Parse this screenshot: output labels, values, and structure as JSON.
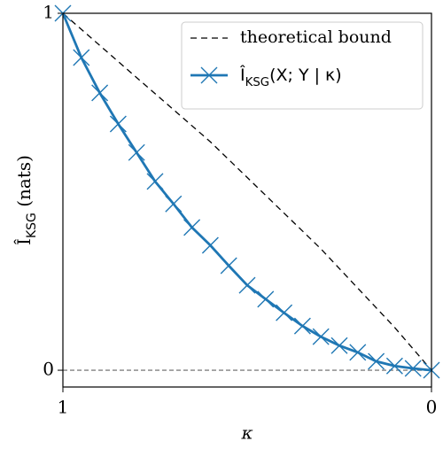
{
  "chart_data": {
    "type": "line",
    "x_label": "κ",
    "y_label": "Î_{KSG} (nats)",
    "xlim": [
      1,
      0
    ],
    "ylim": [
      -0.047,
      1
    ],
    "xticks": [
      1,
      0
    ],
    "yticks": [
      0,
      1
    ],
    "hlines": [
      0
    ],
    "legend": "upper right",
    "series": [
      {
        "name": "theoretical bound",
        "color": "#000000",
        "dashed": true,
        "x": [
          1,
          0.9,
          0.8,
          0.7,
          0.6,
          0.5,
          0.4,
          0.3,
          0.2,
          0.1,
          0
        ],
        "values": [
          1,
          0.91,
          0.82,
          0.73,
          0.64,
          0.54,
          0.44,
          0.34,
          0.23,
          0.12,
          0
        ]
      },
      {
        "name": "Î_{KSG}(X; Y | κ)",
        "color": "#1f77b4",
        "marker": "x",
        "x": [
          1,
          0.95,
          0.9,
          0.85,
          0.8,
          0.75,
          0.7,
          0.65,
          0.6,
          0.55,
          0.5,
          0.45,
          0.4,
          0.35,
          0.3,
          0.25,
          0.2,
          0.15,
          0.1,
          0.05,
          0
        ],
        "values": [
          1,
          0.876,
          0.777,
          0.69,
          0.61,
          0.529,
          0.466,
          0.4,
          0.35,
          0.293,
          0.238,
          0.199,
          0.161,
          0.124,
          0.094,
          0.069,
          0.05,
          0.025,
          0.012,
          0.005,
          0
        ]
      }
    ]
  }
}
